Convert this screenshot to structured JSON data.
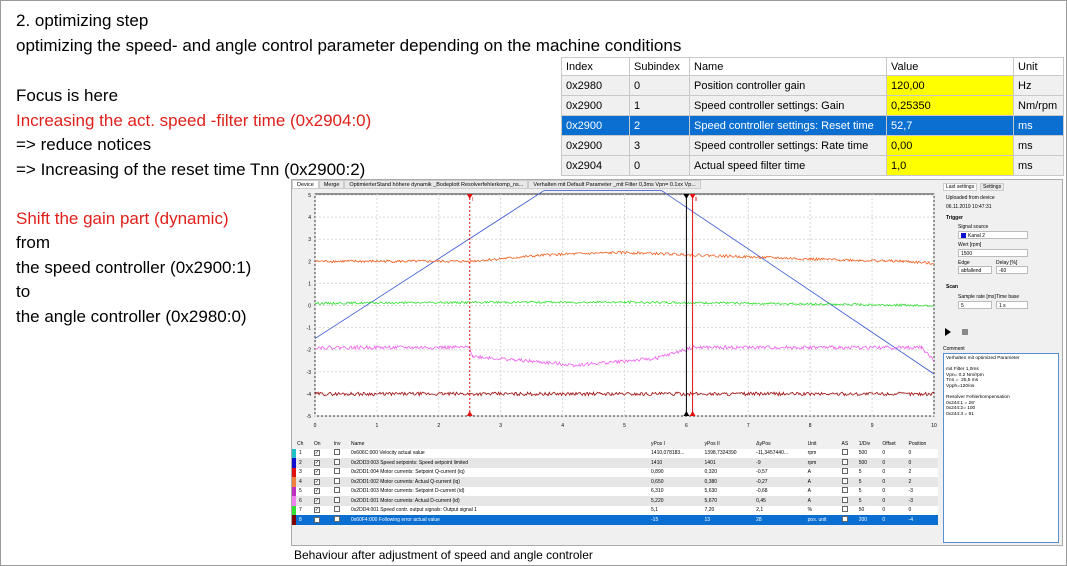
{
  "slide": {
    "title": "2. optimizing step",
    "subtitle": "optimizing the speed-  and angle control parameter depending on the machine conditions",
    "lines": [
      {
        "text": "Focus is here",
        "color": "#000000"
      },
      {
        "text": "Increasing the act. speed -filter time  (0x2904:0)",
        "color": "#e0201a"
      },
      {
        "text": "=> reduce notices",
        "color": "#000000"
      },
      {
        "text": "=> Increasing of the reset time Tnn (0x2900:2)",
        "color": "#000000"
      },
      {
        "text": "",
        "color": "#000000"
      },
      {
        "text": "Shift the gain part (dynamic)",
        "color": "#e0201a"
      },
      {
        "text": "from",
        "color": "#000000"
      },
      {
        "text": "the speed controller (0x2900:1)",
        "color": "#000000"
      },
      {
        "text": "to",
        "color": "#000000"
      },
      {
        "text": "the angle controller (0x2980:0)",
        "color": "#000000"
      }
    ],
    "caption": "Behaviour after adjustment of speed and angle controler"
  },
  "param_table": {
    "headers": [
      "Index",
      "Subindex",
      "Name",
      "Value",
      "Unit"
    ],
    "rows": [
      {
        "index": "0x2980",
        "sub": "0",
        "name": "Position controller gain",
        "value": "120,00",
        "unit": "Hz",
        "selected": false
      },
      {
        "index": "0x2900",
        "sub": "1",
        "name": "Speed controller settings: Gain",
        "value": "0,25350",
        "unit": "Nm/rpm",
        "selected": false
      },
      {
        "index": "0x2900",
        "sub": "2",
        "name": "Speed controller settings: Reset time",
        "value": "52,7",
        "unit": "ms",
        "selected": true
      },
      {
        "index": "0x2900",
        "sub": "3",
        "name": "Speed controller settings: Rate time",
        "value": "0,00",
        "unit": "ms",
        "selected": false
      },
      {
        "index": "0x2904",
        "sub": "0",
        "name": "Actual speed filter time",
        "value": "1,0",
        "unit": "ms",
        "selected": false
      }
    ]
  },
  "scope": {
    "tabs": [
      "Device",
      "Merge",
      "OptimierterStand höhere dynamik _Bodeplott Resolverfehlerkomp_ns...",
      "Verhalten mit Default Parameter _mit Filter 0,3ms Vpn= 0.1xx Vp..."
    ],
    "right_panel": {
      "tabs": [
        "Last settings",
        "Settings"
      ],
      "uploaded": "Uploaded from device",
      "date": "06.11.2019 10:47:31",
      "trigger": "Trigger",
      "signal_source_label": "Signal source",
      "signal_source": "Kanal 2",
      "wert_label": "Wert [rpm]",
      "wert": "1500",
      "edge_label": "Edge",
      "edge": "abfallend",
      "delay_label": "Delay [%]",
      "delay": "-60",
      "scan": "Scan",
      "sample_rate_label": "Sample rate [ms]",
      "sample_rate": "5",
      "time_base_label": "Time base",
      "time_base": "1 s",
      "comment_label": "Comment",
      "comment": "Verhalten mit optimized Parameter\n\nmit Filter 1,0ms\nVpn= 0.2 Nm/rpm\nTnn =  25,5 ms\nVpph=120/os\n\nResolver Fehlerkompensation\n0x244:1 = 26'\n0x244:2= 100\n0x244:3 = 91"
    },
    "channel_headers": [
      "Ch",
      "On",
      "Inv",
      "Name",
      "yPos I",
      "yPos II",
      "ΔyPos",
      "Unit",
      "AS",
      "1/Div",
      "Offset",
      "Position"
    ],
    "channels": [
      {
        "ch": "1",
        "color": "#20c0c8",
        "name": "0x606C:000 Velocity actual value",
        "y1": "1410,078183...",
        "y2": "1398,7324390",
        "dy": "-11,3457440...",
        "unit": "rpm",
        "div": "500",
        "offset": "0",
        "pos": "0"
      },
      {
        "ch": "2",
        "color": "#1010d0",
        "name": "0x2DD3:003 Speed setpoints: Speed setpoint limited",
        "y1": "1410",
        "y2": "1401",
        "dy": "-9",
        "unit": "rpm",
        "div": "500",
        "offset": "0",
        "pos": "0"
      },
      {
        "ch": "3",
        "color": "#e01010",
        "name": "0x2DD1:004 Motor currents: Setpoint Q-current (iq)",
        "y1": "0,890",
        "y2": "0,320",
        "dy": "-0,57",
        "unit": "A",
        "div": "5",
        "offset": "0",
        "pos": "2"
      },
      {
        "ch": "4",
        "color": "#f08040",
        "name": "0x2DD1:002 Motor currents: Actual Q-current (iq)",
        "y1": "0,650",
        "y2": "0,380",
        "dy": "-0,27",
        "unit": "A",
        "div": "5",
        "offset": "0",
        "pos": "2"
      },
      {
        "ch": "5",
        "color": "#c030c0",
        "name": "0x2DD1:003 Motor currents: Setpoint D-current (id)",
        "y1": "6,310",
        "y2": "5,630",
        "dy": "-0,68",
        "unit": "A",
        "div": "5",
        "offset": "0",
        "pos": "-3"
      },
      {
        "ch": "6",
        "color": "#f080f0",
        "name": "0x2DD1:001 Motor currents: Actual D-current (id)",
        "y1": "5,220",
        "y2": "5,670",
        "dy": "0,45",
        "unit": "A",
        "div": "5",
        "offset": "0",
        "pos": "-3"
      },
      {
        "ch": "7",
        "color": "#30e030",
        "name": "0x2DD4:001 Speed contr. output signals: Output signal 1",
        "y1": "5,1",
        "y2": "7,20",
        "dy": "2,1",
        "unit": "%",
        "div": "50",
        "offset": "0",
        "pos": "0"
      },
      {
        "ch": "8",
        "color": "#800000",
        "name": "0x60F4:000 Following error actual value",
        "y1": "-15",
        "y2": "13",
        "dy": "28",
        "unit": "pos. unit",
        "div": "200",
        "offset": "0",
        "pos": "-4",
        "selected": true
      }
    ]
  },
  "chart_data": {
    "type": "line",
    "xlim": [
      0,
      10
    ],
    "ylim": [
      -5,
      5
    ],
    "x_ticks": [
      "0",
      "1",
      "2",
      "3",
      "4",
      "5",
      "6",
      "7",
      "8",
      "9",
      "10"
    ],
    "y_ticks": [
      "5",
      "4",
      "3",
      "2",
      "1",
      "0",
      "-1",
      "-2",
      "-3",
      "-4",
      "-5"
    ],
    "grid": true,
    "cursors": [
      {
        "label": "I",
        "x": 2.5,
        "color": "#e01010",
        "style": "dashed"
      },
      {
        "label": "",
        "x": 6.0,
        "color": "#000000",
        "style": "solid"
      },
      {
        "label": "II",
        "x": 6.1,
        "color": "#e01010",
        "style": "solid"
      }
    ],
    "series": [
      {
        "color": "#3050d0",
        "points": [
          [
            0,
            -1.5
          ],
          [
            3.7,
            5.2
          ],
          [
            5.6,
            5.2
          ],
          [
            10,
            -3.1
          ]
        ],
        "noise": 0
      },
      {
        "color": "#f06020",
        "points": [
          [
            0,
            2
          ],
          [
            2.5,
            2
          ],
          [
            3.8,
            2.3
          ],
          [
            5,
            2.4
          ],
          [
            6,
            2.3
          ],
          [
            8,
            2.1
          ],
          [
            9.5,
            2
          ],
          [
            10,
            1.9
          ]
        ],
        "noise": 0.06
      },
      {
        "color": "#30e030",
        "points": [
          [
            0,
            0.1
          ],
          [
            3,
            0.15
          ],
          [
            5,
            0.15
          ],
          [
            7,
            0.1
          ],
          [
            10,
            0
          ]
        ],
        "noise": 0.05
      },
      {
        "color": "#f060f0",
        "points": [
          [
            0,
            -1.9
          ],
          [
            2.5,
            -1.9
          ],
          [
            2.55,
            -2.3
          ],
          [
            4.2,
            -2.7
          ],
          [
            5.5,
            -2.4
          ],
          [
            6.1,
            -1.9
          ],
          [
            9.8,
            -1.9
          ],
          [
            10,
            -2.5
          ]
        ],
        "noise": 0.08
      },
      {
        "color": "#a01010",
        "points": [
          [
            0,
            -4
          ],
          [
            10,
            -4
          ]
        ],
        "noise": 0.08
      }
    ]
  }
}
